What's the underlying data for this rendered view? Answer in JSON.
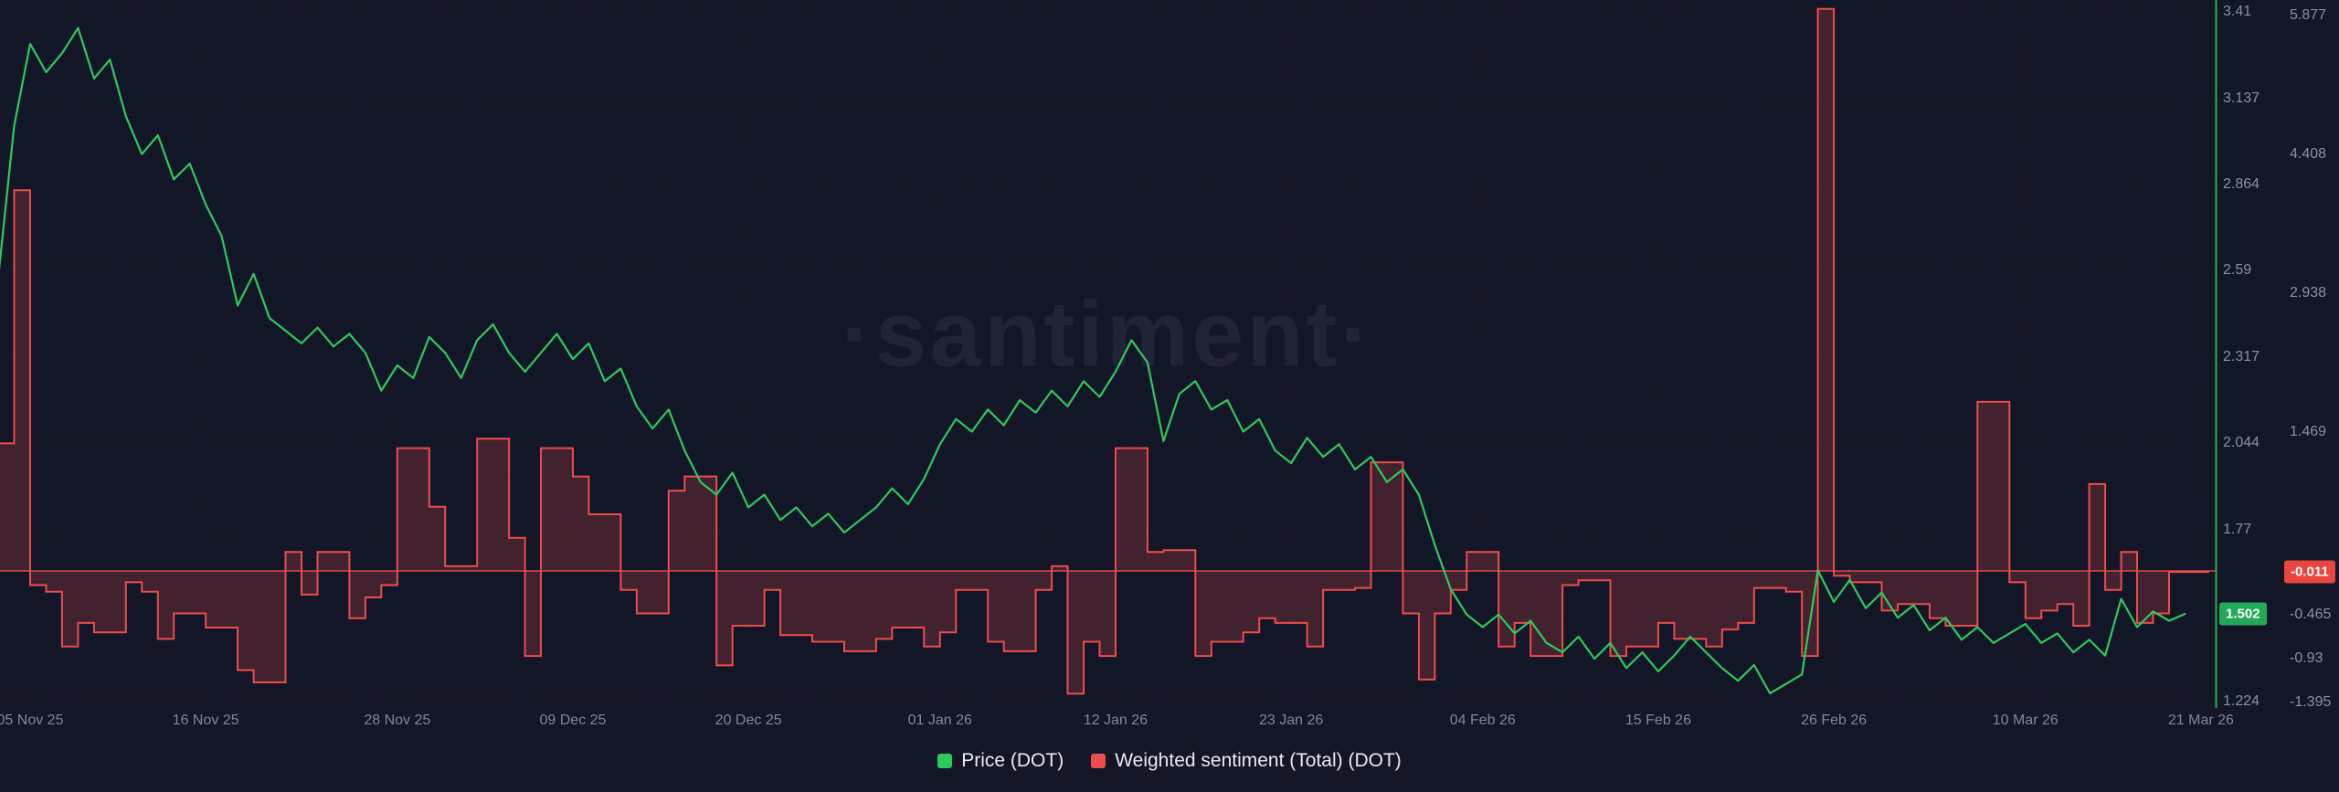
{
  "watermark": "·santiment·",
  "chart_data": {
    "type": "line",
    "title": "",
    "grid": "faint-dotted",
    "legend_position": "bottom",
    "x_axis": {
      "type": "date",
      "range": [
        "2025-11-03",
        "2026-03-21"
      ],
      "tick_labels": [
        {
          "label": "05 Nov 25",
          "date": "2025-11-05"
        },
        {
          "label": "16 Nov 25",
          "date": "2025-11-16"
        },
        {
          "label": "28 Nov 25",
          "date": "2025-11-28"
        },
        {
          "label": "09 Dec 25",
          "date": "2025-12-09"
        },
        {
          "label": "20 Dec 25",
          "date": "2025-12-20"
        },
        {
          "label": "01 Jan 26",
          "date": "2026-01-01"
        },
        {
          "label": "12 Jan 26",
          "date": "2026-01-12"
        },
        {
          "label": "23 Jan 26",
          "date": "2026-01-23"
        },
        {
          "label": "04 Feb 26",
          "date": "2026-02-04"
        },
        {
          "label": "15 Feb 26",
          "date": "2026-02-15"
        },
        {
          "label": "26 Feb 26",
          "date": "2026-02-26"
        },
        {
          "label": "10 Mar 26",
          "date": "2026-03-10"
        },
        {
          "label": "21 Mar 26",
          "date": "2026-03-21"
        }
      ]
    },
    "y_axes": {
      "price": {
        "side": "right-inner",
        "color": "#2ec95c",
        "ticks": [
          "3.41",
          "3.137",
          "2.864",
          "2.59",
          "2.317",
          "2.044",
          "1.77",
          "1.224"
        ],
        "last_value": 1.502,
        "last_value_label": "1.502"
      },
      "sentiment": {
        "side": "right-outer",
        "color": "#ed4c4c",
        "zero_line": 0,
        "ticks": [
          "5.877",
          "4.408",
          "2.938",
          "1.469",
          "-0.465",
          "-0.93",
          "-1.395"
        ],
        "last_value": -0.011,
        "last_value_label": "-0.011"
      }
    },
    "series": [
      {
        "name": "Price (DOT)",
        "type": "line",
        "color": "#2ec95c",
        "y_axis": "price",
        "points": [
          [
            "2025-11-03",
            2.57
          ],
          [
            "2025-11-04",
            3.05
          ],
          [
            "2025-11-05",
            3.31
          ],
          [
            "2025-11-06",
            3.22
          ],
          [
            "2025-11-07",
            3.28
          ],
          [
            "2025-11-08",
            3.36
          ],
          [
            "2025-11-09",
            3.2
          ],
          [
            "2025-11-10",
            3.26
          ],
          [
            "2025-11-11",
            3.08
          ],
          [
            "2025-11-12",
            2.96
          ],
          [
            "2025-11-13",
            3.02
          ],
          [
            "2025-11-14",
            2.88
          ],
          [
            "2025-11-15",
            2.93
          ],
          [
            "2025-11-16",
            2.8
          ],
          [
            "2025-11-17",
            2.7
          ],
          [
            "2025-11-18",
            2.48
          ],
          [
            "2025-11-19",
            2.58
          ],
          [
            "2025-11-20",
            2.44
          ],
          [
            "2025-11-21",
            2.4
          ],
          [
            "2025-11-22",
            2.36
          ],
          [
            "2025-11-23",
            2.41
          ],
          [
            "2025-11-24",
            2.35
          ],
          [
            "2025-11-25",
            2.39
          ],
          [
            "2025-11-26",
            2.33
          ],
          [
            "2025-11-27",
            2.21
          ],
          [
            "2025-11-28",
            2.29
          ],
          [
            "2025-11-29",
            2.25
          ],
          [
            "2025-11-30",
            2.38
          ],
          [
            "2025-12-01",
            2.33
          ],
          [
            "2025-12-02",
            2.25
          ],
          [
            "2025-12-03",
            2.37
          ],
          [
            "2025-12-04",
            2.42
          ],
          [
            "2025-12-05",
            2.33
          ],
          [
            "2025-12-06",
            2.27
          ],
          [
            "2025-12-07",
            2.33
          ],
          [
            "2025-12-08",
            2.39
          ],
          [
            "2025-12-09",
            2.31
          ],
          [
            "2025-12-10",
            2.36
          ],
          [
            "2025-12-11",
            2.24
          ],
          [
            "2025-12-12",
            2.28
          ],
          [
            "2025-12-13",
            2.16
          ],
          [
            "2025-12-14",
            2.09
          ],
          [
            "2025-12-15",
            2.15
          ],
          [
            "2025-12-16",
            2.02
          ],
          [
            "2025-12-17",
            1.92
          ],
          [
            "2025-12-18",
            1.88
          ],
          [
            "2025-12-19",
            1.95
          ],
          [
            "2025-12-20",
            1.84
          ],
          [
            "2025-12-21",
            1.88
          ],
          [
            "2025-12-22",
            1.8
          ],
          [
            "2025-12-23",
            1.84
          ],
          [
            "2025-12-24",
            1.78
          ],
          [
            "2025-12-25",
            1.82
          ],
          [
            "2025-12-26",
            1.76
          ],
          [
            "2025-12-27",
            1.8
          ],
          [
            "2025-12-28",
            1.84
          ],
          [
            "2025-12-29",
            1.9
          ],
          [
            "2025-12-30",
            1.85
          ],
          [
            "2025-12-31",
            1.93
          ],
          [
            "2026-01-01",
            2.04
          ],
          [
            "2026-01-02",
            2.12
          ],
          [
            "2026-01-03",
            2.08
          ],
          [
            "2026-01-04",
            2.15
          ],
          [
            "2026-01-05",
            2.1
          ],
          [
            "2026-01-06",
            2.18
          ],
          [
            "2026-01-07",
            2.14
          ],
          [
            "2026-01-08",
            2.21
          ],
          [
            "2026-01-09",
            2.16
          ],
          [
            "2026-01-10",
            2.24
          ],
          [
            "2026-01-11",
            2.19
          ],
          [
            "2026-01-12",
            2.27
          ],
          [
            "2026-01-13",
            2.37
          ],
          [
            "2026-01-14",
            2.3
          ],
          [
            "2026-01-15",
            2.05
          ],
          [
            "2026-01-16",
            2.2
          ],
          [
            "2026-01-17",
            2.24
          ],
          [
            "2026-01-18",
            2.15
          ],
          [
            "2026-01-19",
            2.18
          ],
          [
            "2026-01-20",
            2.08
          ],
          [
            "2026-01-21",
            2.12
          ],
          [
            "2026-01-22",
            2.02
          ],
          [
            "2026-01-23",
            1.98
          ],
          [
            "2026-01-24",
            2.06
          ],
          [
            "2026-01-25",
            2.0
          ],
          [
            "2026-01-26",
            2.04
          ],
          [
            "2026-01-27",
            1.96
          ],
          [
            "2026-01-28",
            2.0
          ],
          [
            "2026-01-29",
            1.92
          ],
          [
            "2026-01-30",
            1.96
          ],
          [
            "2026-01-31",
            1.88
          ],
          [
            "2026-02-01",
            1.72
          ],
          [
            "2026-02-02",
            1.58
          ],
          [
            "2026-02-03",
            1.5
          ],
          [
            "2026-02-04",
            1.46
          ],
          [
            "2026-02-05",
            1.5
          ],
          [
            "2026-02-06",
            1.44
          ],
          [
            "2026-02-07",
            1.48
          ],
          [
            "2026-02-08",
            1.41
          ],
          [
            "2026-02-09",
            1.38
          ],
          [
            "2026-02-10",
            1.43
          ],
          [
            "2026-02-11",
            1.36
          ],
          [
            "2026-02-12",
            1.41
          ],
          [
            "2026-02-13",
            1.33
          ],
          [
            "2026-02-14",
            1.38
          ],
          [
            "2026-02-15",
            1.32
          ],
          [
            "2026-02-16",
            1.37
          ],
          [
            "2026-02-17",
            1.43
          ],
          [
            "2026-02-18",
            1.38
          ],
          [
            "2026-02-19",
            1.33
          ],
          [
            "2026-02-20",
            1.29
          ],
          [
            "2026-02-21",
            1.34
          ],
          [
            "2026-02-22",
            1.25
          ],
          [
            "2026-02-23",
            1.28
          ],
          [
            "2026-02-24",
            1.31
          ],
          [
            "2026-02-25",
            1.64
          ],
          [
            "2026-02-26",
            1.54
          ],
          [
            "2026-02-27",
            1.61
          ],
          [
            "2026-02-28",
            1.52
          ],
          [
            "2026-03-01",
            1.57
          ],
          [
            "2026-03-02",
            1.49
          ],
          [
            "2026-03-03",
            1.53
          ],
          [
            "2026-03-04",
            1.45
          ],
          [
            "2026-03-05",
            1.49
          ],
          [
            "2026-03-06",
            1.42
          ],
          [
            "2026-03-07",
            1.46
          ],
          [
            "2026-03-08",
            1.41
          ],
          [
            "2026-03-09",
            1.44
          ],
          [
            "2026-03-10",
            1.47
          ],
          [
            "2026-03-11",
            1.41
          ],
          [
            "2026-03-12",
            1.44
          ],
          [
            "2026-03-13",
            1.38
          ],
          [
            "2026-03-14",
            1.42
          ],
          [
            "2026-03-15",
            1.37
          ],
          [
            "2026-03-16",
            1.55
          ],
          [
            "2026-03-17",
            1.46
          ],
          [
            "2026-03-18",
            1.51
          ],
          [
            "2026-03-19",
            1.48
          ],
          [
            "2026-03-20",
            1.502
          ]
        ]
      },
      {
        "name": "Weighted sentiment (Total) (DOT)",
        "type": "step-area",
        "color": "#ed4c4c",
        "y_axis": "sentiment",
        "points": [
          [
            "2025-11-03",
            1.35
          ],
          [
            "2025-11-04",
            4.03
          ],
          [
            "2025-11-05",
            -0.15
          ],
          [
            "2025-11-06",
            -0.22
          ],
          [
            "2025-11-07",
            -0.8
          ],
          [
            "2025-11-08",
            -0.55
          ],
          [
            "2025-11-09",
            -0.65
          ],
          [
            "2025-11-11",
            -0.12
          ],
          [
            "2025-11-12",
            -0.22
          ],
          [
            "2025-11-13",
            -0.72
          ],
          [
            "2025-11-14",
            -0.45
          ],
          [
            "2025-11-16",
            -0.6
          ],
          [
            "2025-11-18",
            -1.05
          ],
          [
            "2025-11-19",
            -1.18
          ],
          [
            "2025-11-21",
            0.2
          ],
          [
            "2025-11-22",
            -0.25
          ],
          [
            "2025-11-23",
            0.2
          ],
          [
            "2025-11-25",
            -0.5
          ],
          [
            "2025-11-26",
            -0.28
          ],
          [
            "2025-11-27",
            -0.15
          ],
          [
            "2025-11-28",
            1.3
          ],
          [
            "2025-11-30",
            0.68
          ],
          [
            "2025-12-01",
            0.05
          ],
          [
            "2025-12-03",
            1.4
          ],
          [
            "2025-12-05",
            0.35
          ],
          [
            "2025-12-06",
            -0.9
          ],
          [
            "2025-12-07",
            1.3
          ],
          [
            "2025-12-09",
            1.0
          ],
          [
            "2025-12-10",
            0.6
          ],
          [
            "2025-12-12",
            -0.2
          ],
          [
            "2025-12-13",
            -0.45
          ],
          [
            "2025-12-15",
            0.85
          ],
          [
            "2025-12-16",
            1.0
          ],
          [
            "2025-12-18",
            -1.0
          ],
          [
            "2025-12-19",
            -0.58
          ],
          [
            "2025-12-21",
            -0.2
          ],
          [
            "2025-12-22",
            -0.68
          ],
          [
            "2025-12-24",
            -0.75
          ],
          [
            "2025-12-26",
            -0.85
          ],
          [
            "2025-12-28",
            -0.72
          ],
          [
            "2025-12-29",
            -0.6
          ],
          [
            "2025-12-31",
            -0.8
          ],
          [
            "2026-01-01",
            -0.65
          ],
          [
            "2026-01-02",
            -0.2
          ],
          [
            "2026-01-04",
            -0.75
          ],
          [
            "2026-01-05",
            -0.85
          ],
          [
            "2026-01-07",
            -0.2
          ],
          [
            "2026-01-08",
            0.05
          ],
          [
            "2026-01-09",
            -1.3
          ],
          [
            "2026-01-10",
            -0.75
          ],
          [
            "2026-01-11",
            -0.9
          ],
          [
            "2026-01-12",
            1.3
          ],
          [
            "2026-01-14",
            0.2
          ],
          [
            "2026-01-15",
            0.22
          ],
          [
            "2026-01-17",
            -0.9
          ],
          [
            "2026-01-18",
            -0.75
          ],
          [
            "2026-01-20",
            -0.65
          ],
          [
            "2026-01-21",
            -0.5
          ],
          [
            "2026-01-22",
            -0.55
          ],
          [
            "2026-01-24",
            -0.8
          ],
          [
            "2026-01-25",
            -0.2
          ],
          [
            "2026-01-27",
            -0.18
          ],
          [
            "2026-01-28",
            1.15
          ],
          [
            "2026-01-30",
            -0.45
          ],
          [
            "2026-01-31",
            -1.15
          ],
          [
            "2026-02-01",
            -0.45
          ],
          [
            "2026-02-02",
            -0.2
          ],
          [
            "2026-02-03",
            0.2
          ],
          [
            "2026-02-05",
            -0.8
          ],
          [
            "2026-02-06",
            -0.55
          ],
          [
            "2026-02-07",
            -0.9
          ],
          [
            "2026-02-09",
            -0.15
          ],
          [
            "2026-02-10",
            -0.1
          ],
          [
            "2026-02-12",
            -0.9
          ],
          [
            "2026-02-13",
            -0.8
          ],
          [
            "2026-02-15",
            -0.55
          ],
          [
            "2026-02-16",
            -0.72
          ],
          [
            "2026-02-18",
            -0.8
          ],
          [
            "2026-02-19",
            -0.62
          ],
          [
            "2026-02-20",
            -0.55
          ],
          [
            "2026-02-21",
            -0.18
          ],
          [
            "2026-02-23",
            -0.22
          ],
          [
            "2026-02-24",
            -0.9
          ],
          [
            "2026-02-25",
            5.95
          ],
          [
            "2026-02-26",
            -0.05
          ],
          [
            "2026-02-27",
            -0.12
          ],
          [
            "2026-03-01",
            -0.42
          ],
          [
            "2026-03-02",
            -0.35
          ],
          [
            "2026-03-04",
            -0.5
          ],
          [
            "2026-03-05",
            -0.58
          ],
          [
            "2026-03-07",
            1.79
          ],
          [
            "2026-03-09",
            -0.12
          ],
          [
            "2026-03-10",
            -0.5
          ],
          [
            "2026-03-11",
            -0.42
          ],
          [
            "2026-03-12",
            -0.35
          ],
          [
            "2026-03-13",
            -0.58
          ],
          [
            "2026-03-14",
            0.92
          ],
          [
            "2026-03-15",
            -0.2
          ],
          [
            "2026-03-16",
            0.2
          ],
          [
            "2026-03-17",
            -0.55
          ],
          [
            "2026-03-18",
            -0.45
          ],
          [
            "2026-03-19",
            -0.011
          ]
        ]
      }
    ]
  }
}
